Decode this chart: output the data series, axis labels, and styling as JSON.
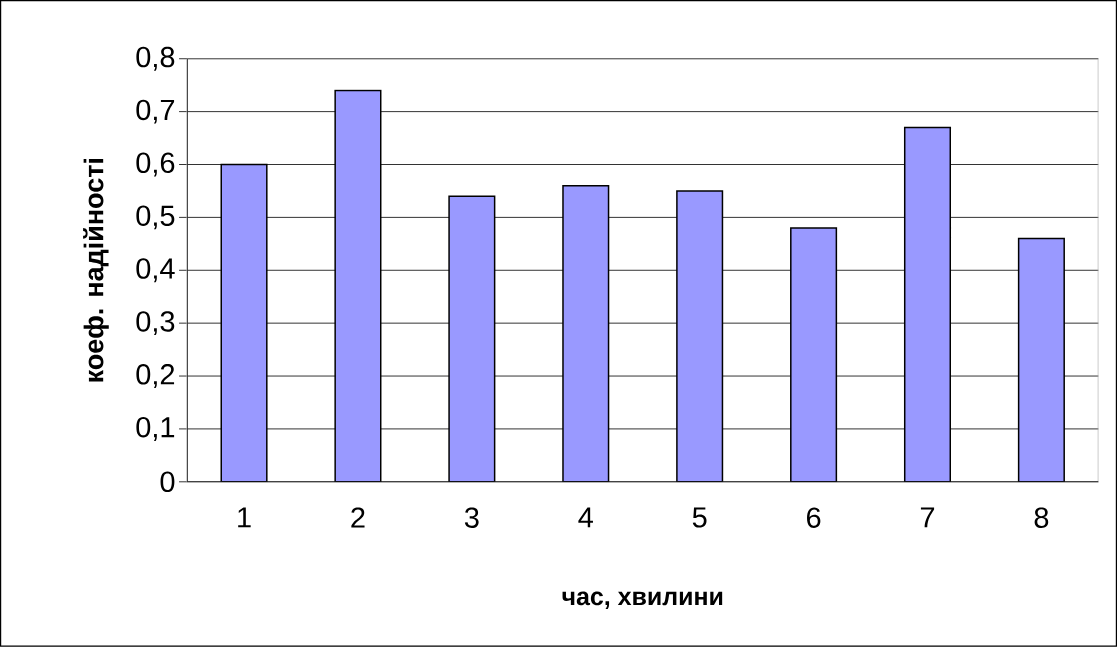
{
  "chart_data": {
    "type": "bar",
    "xlabel": "час, хвилини",
    "ylabel": "коеф. надійності",
    "categories": [
      "1",
      "2",
      "3",
      "4",
      "5",
      "6",
      "7",
      "8"
    ],
    "values": [
      0.6,
      0.74,
      0.54,
      0.56,
      0.55,
      0.48,
      0.67,
      0.46
    ],
    "color": "#9999ff",
    "ylim": [
      0,
      0.8
    ],
    "yticks": [
      0,
      {
        "value": 0.1,
        "label": "0,1"
      },
      {
        "value": 0.2,
        "label": "0,2"
      },
      {
        "value": 0.3,
        "label": "0,3"
      },
      {
        "value": 0.4,
        "label": "0,4"
      },
      {
        "value": 0.5,
        "label": "0,5"
      },
      {
        "value": 0.6,
        "label": "0,6"
      },
      {
        "value": 0.7,
        "label": "0,7"
      },
      {
        "value": 0.8,
        "label": "0,8"
      }
    ],
    "grid": "y"
  }
}
